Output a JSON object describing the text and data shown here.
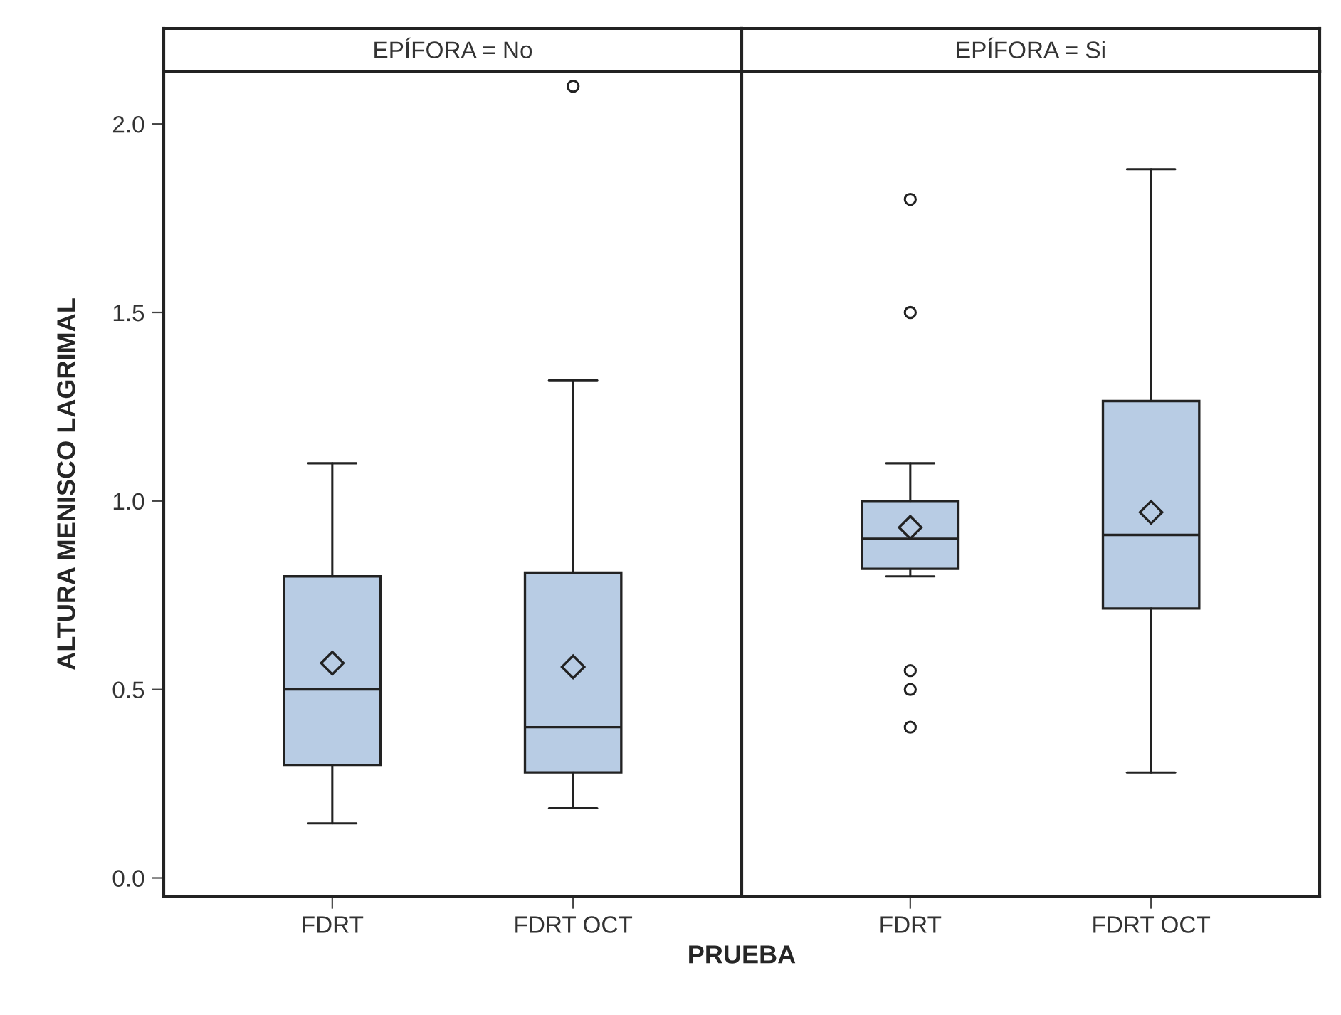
{
  "chart_data": [
    {
      "type": "box",
      "title": "EPÍFORA = No",
      "xlabel": "PRUEBA",
      "ylabel": "ALTURA MENISCO LAGRIMAL",
      "categories": [
        "FDRT",
        "FDRT OCT"
      ],
      "color": "#b8cce4",
      "boxes": [
        {
          "low": 0.145,
          "q1": 0.3,
          "median": 0.5,
          "q3": 0.8,
          "high": 1.1,
          "mean": 0.57
        },
        {
          "low": 0.185,
          "q1": 0.28,
          "median": 0.4,
          "q3": 0.81,
          "high": 1.32,
          "mean": 0.56,
          "outliers": [
            2.1
          ]
        }
      ],
      "ylim": [
        -0.05,
        2.14
      ],
      "yticks": [
        {
          "value": 0,
          "label": "0.0"
        },
        {
          "value": 0.5,
          "label": "0.5"
        },
        {
          "value": 1,
          "label": "1.0"
        },
        {
          "value": 1.5,
          "label": "1.5"
        },
        {
          "value": 2,
          "label": "2.0"
        }
      ]
    },
    {
      "type": "box",
      "title": "EPÍFORA = Si",
      "categories": [
        "FDRT",
        "FDRT OCT"
      ],
      "color": "#b8cce4",
      "tick_labels": "x",
      "boxes": [
        {
          "low": 0.8,
          "q1": 0.82,
          "median": 0.9,
          "q3": 1.0,
          "high": 1.1,
          "mean": 0.93,
          "outliers": [
            0.4,
            0.5,
            0.55,
            1.5,
            1.8
          ]
        },
        {
          "low": 0.28,
          "q1": 0.715,
          "median": 0.91,
          "q3": 1.265,
          "high": 1.88,
          "mean": 0.97
        }
      ],
      "ylim": [
        -0.05,
        2.14
      ]
    }
  ]
}
